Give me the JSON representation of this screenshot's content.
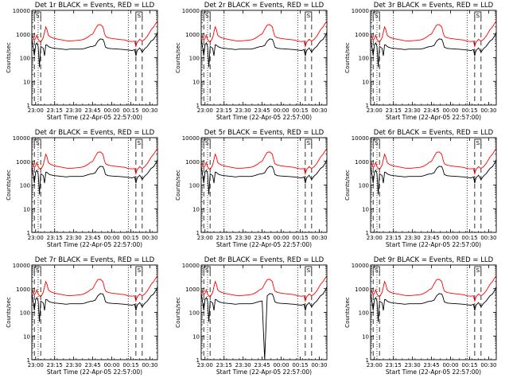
{
  "colors": {
    "events": "#000000",
    "lld": "#ff0000",
    "axis": "#000000",
    "background": "#ffffff"
  },
  "chart_data": [
    {
      "type": "line",
      "title": "Det 1r BLACK = Events, RED = LLD",
      "panel": "1r",
      "ylabel": "Counts/sec",
      "xlabel": "Start Time (22-Apr-05 22:57:00)",
      "xscale": "time",
      "yscale": "log",
      "xlim": [
        "22:57:00",
        "00:36:00"
      ],
      "ylim": [
        1,
        10000
      ],
      "x_ticks": [
        "23:00",
        "23:15",
        "23:30",
        "23:45",
        "00:00",
        "00:15",
        "00:30"
      ],
      "y_ticks": [
        "1",
        "10",
        "100",
        "1000",
        "10000"
      ],
      "dotted_lines": [
        "23:02",
        "23:15",
        "00:13"
      ],
      "dashed_lines": [
        "22:59",
        "23:04",
        "00:19",
        "00:24"
      ],
      "bracket_labels": [
        "S",
        "S"
      ]
    },
    {
      "type": "line",
      "title": "Det 2r BLACK = Events, RED = LLD",
      "panel": "2r",
      "ylabel": "Counts/sec",
      "xlabel": "Start Time (22-Apr-05 22:57:00)",
      "xscale": "time",
      "yscale": "log",
      "xlim": [
        "22:57:00",
        "00:36:00"
      ],
      "ylim": [
        1,
        10000
      ],
      "x_ticks": [
        "23:00",
        "23:15",
        "23:30",
        "23:45",
        "00:00",
        "00:15",
        "00:30"
      ],
      "y_ticks": [
        "1",
        "10",
        "100",
        "1000",
        "10000"
      ],
      "dotted_lines": [
        "23:02",
        "23:15",
        "00:13"
      ],
      "dashed_lines": [
        "22:59",
        "23:04",
        "00:19",
        "00:24"
      ],
      "bracket_labels": [
        "S",
        "S"
      ]
    },
    {
      "type": "line",
      "title": "Det 3r BLACK = Events, RED = LLD",
      "panel": "3r",
      "ylabel": "Counts/sec",
      "xlabel": "Start Time (22-Apr-05 22:57:00)",
      "xscale": "time",
      "yscale": "log",
      "xlim": [
        "22:57:00",
        "00:36:00"
      ],
      "ylim": [
        1,
        10000
      ],
      "x_ticks": [
        "23:00",
        "23:15",
        "23:30",
        "23:45",
        "00:00",
        "00:15",
        "00:30"
      ],
      "y_ticks": [
        "1",
        "10",
        "100",
        "1000",
        "10000"
      ],
      "dotted_lines": [
        "23:02",
        "23:15",
        "00:13"
      ],
      "dashed_lines": [
        "22:59",
        "23:04",
        "00:19",
        "00:24"
      ],
      "bracket_labels": [
        "S",
        "S"
      ]
    },
    {
      "type": "line",
      "title": "Det 4r BLACK = Events, RED = LLD",
      "panel": "4r",
      "ylabel": "Counts/sec",
      "xlabel": "Start Time (22-Apr-05 22:57:00)",
      "xscale": "time",
      "yscale": "log",
      "xlim": [
        "22:57:00",
        "00:36:00"
      ],
      "ylim": [
        1,
        10000
      ],
      "x_ticks": [
        "23:00",
        "23:15",
        "23:30",
        "23:45",
        "00:00",
        "00:15",
        "00:30"
      ],
      "y_ticks": [
        "1",
        "10",
        "100",
        "1000",
        "10000"
      ],
      "dotted_lines": [
        "23:02",
        "23:15",
        "00:13"
      ],
      "dashed_lines": [
        "22:59",
        "23:04",
        "00:19",
        "00:24"
      ],
      "bracket_labels": [
        "S",
        "S"
      ]
    },
    {
      "type": "line",
      "title": "Det 5r BLACK = Events, RED = LLD",
      "panel": "5r",
      "ylabel": "Counts/sec",
      "xlabel": "Start Time (22-Apr-05 22:57:00)",
      "xscale": "time",
      "yscale": "log",
      "xlim": [
        "22:57:00",
        "00:36:00"
      ],
      "ylim": [
        1,
        10000
      ],
      "x_ticks": [
        "23:00",
        "23:15",
        "23:30",
        "23:45",
        "00:00",
        "00:15",
        "00:30"
      ],
      "y_ticks": [
        "1",
        "10",
        "100",
        "1000",
        "10000"
      ],
      "dotted_lines": [
        "23:02",
        "23:15",
        "00:13"
      ],
      "dashed_lines": [
        "22:59",
        "23:04",
        "00:19",
        "00:24"
      ],
      "bracket_labels": [
        "S",
        "S"
      ]
    },
    {
      "type": "line",
      "title": "Det 6r BLACK = Events, RED = LLD",
      "panel": "6r",
      "ylabel": "Counts/sec",
      "xlabel": "Start Time (22-Apr-05 22:57:00)",
      "xscale": "time",
      "yscale": "log",
      "xlim": [
        "22:57:00",
        "00:36:00"
      ],
      "ylim": [
        1,
        10000
      ],
      "x_ticks": [
        "23:00",
        "23:15",
        "23:30",
        "23:45",
        "00:00",
        "00:15",
        "00:30"
      ],
      "y_ticks": [
        "1",
        "10",
        "100",
        "1000",
        "10000"
      ],
      "dotted_lines": [
        "23:02",
        "23:15",
        "00:13"
      ],
      "dashed_lines": [
        "22:59",
        "23:04",
        "00:19",
        "00:24"
      ],
      "bracket_labels": [
        "S",
        "S"
      ]
    },
    {
      "type": "line",
      "title": "Det 7r BLACK = Events, RED = LLD",
      "panel": "7r",
      "ylabel": "Counts/sec",
      "xlabel": "Start Time (22-Apr-05 22:57:00)",
      "xscale": "time",
      "yscale": "log",
      "xlim": [
        "22:57:00",
        "00:36:00"
      ],
      "ylim": [
        1,
        10000
      ],
      "x_ticks": [
        "23:00",
        "23:15",
        "23:30",
        "23:45",
        "00:00",
        "00:15",
        "00:30"
      ],
      "y_ticks": [
        "1",
        "10",
        "100",
        "1000",
        "10000"
      ],
      "dotted_lines": [
        "23:02",
        "23:15",
        "00:13"
      ],
      "dashed_lines": [
        "22:59",
        "23:04",
        "00:19",
        "00:24"
      ],
      "bracket_labels": [
        "S",
        "S"
      ]
    },
    {
      "type": "line",
      "title": "Det 8r BLACK = Events, RED = LLD",
      "panel": "8r",
      "ylabel": "Counts/sec",
      "xlabel": "Start Time (22-Apr-05 22:57:00)",
      "xscale": "time",
      "yscale": "log",
      "xlim": [
        "22:57:00",
        "00:36:00"
      ],
      "ylim": [
        1,
        10000
      ],
      "x_ticks": [
        "23:00",
        "23:15",
        "23:30",
        "23:45",
        "00:00",
        "00:15",
        "00:30"
      ],
      "y_ticks": [
        "1",
        "10",
        "100",
        "1000",
        "10000"
      ],
      "dotted_lines": [
        "23:02",
        "23:15",
        "00:13"
      ],
      "dashed_lines": [
        "22:59",
        "23:04",
        "00:19",
        "00:24"
      ],
      "bracket_labels": [
        "S",
        "S"
      ]
    },
    {
      "type": "line",
      "title": "Det 9r BLACK = Events, RED = LLD",
      "panel": "9r",
      "ylabel": "Counts/sec",
      "xlabel": "Start Time (22-Apr-05 22:57:00)",
      "xscale": "time",
      "yscale": "log",
      "xlim": [
        "22:57:00",
        "00:36:00"
      ],
      "ylim": [
        1,
        10000
      ],
      "x_ticks": [
        "23:00",
        "23:15",
        "23:30",
        "23:45",
        "00:00",
        "00:15",
        "00:30"
      ],
      "y_ticks": [
        "1",
        "10",
        "100",
        "1000",
        "10000"
      ],
      "dotted_lines": [
        "23:02",
        "23:15",
        "00:13"
      ],
      "dashed_lines": [
        "22:59",
        "23:04",
        "00:19",
        "00:24"
      ],
      "bracket_labels": [
        "S",
        "S"
      ]
    }
  ],
  "series_shape": {
    "events": [
      [
        "22:57",
        600
      ],
      [
        "22:58",
        300
      ],
      [
        "22:59",
        120
      ],
      [
        "23:00",
        350
      ],
      [
        "23:01",
        420
      ],
      [
        "23:02",
        300
      ],
      [
        "23:03",
        40
      ],
      [
        "23:04",
        300
      ],
      [
        "23:06",
        250
      ],
      [
        "23:07",
        120
      ],
      [
        "23:08",
        350
      ],
      [
        "23:09",
        340
      ],
      [
        "23:10",
        300
      ],
      [
        "23:11",
        280
      ],
      [
        "23:13",
        260
      ],
      [
        "23:15",
        250
      ],
      [
        "23:18",
        240
      ],
      [
        "23:21",
        230
      ],
      [
        "23:24",
        220
      ],
      [
        "23:27",
        230
      ],
      [
        "23:30",
        230
      ],
      [
        "23:33",
        230
      ],
      [
        "23:36",
        230
      ],
      [
        "23:38",
        240
      ],
      [
        "23:40",
        260
      ],
      [
        "23:42",
        280
      ],
      [
        "23:43",
        290
      ],
      [
        "23:45",
        300
      ],
      [
        "23:47",
        330
      ],
      [
        "23:49",
        500
      ],
      [
        "23:51",
        620
      ],
      [
        "23:53",
        600
      ],
      [
        "23:54",
        450
      ],
      [
        "23:55",
        280
      ],
      [
        "23:57",
        250
      ],
      [
        "00:00",
        240
      ],
      [
        "00:05",
        230
      ],
      [
        "00:10",
        220
      ],
      [
        "00:13",
        210
      ],
      [
        "00:16",
        200
      ],
      [
        "00:18",
        220
      ],
      [
        "00:19",
        120
      ],
      [
        "00:20",
        200
      ],
      [
        "00:22",
        260
      ],
      [
        "00:24",
        170
      ],
      [
        "00:26",
        240
      ],
      [
        "00:28",
        300
      ],
      [
        "00:31",
        500
      ],
      [
        "00:33",
        600
      ],
      [
        "00:35",
        900
      ],
      [
        "00:36",
        1200
      ]
    ],
    "lld": [
      [
        "22:57",
        700
      ],
      [
        "22:58",
        800
      ],
      [
        "22:59",
        550
      ],
      [
        "23:00",
        650
      ],
      [
        "23:01",
        900
      ],
      [
        "23:02",
        600
      ],
      [
        "23:03",
        500
      ],
      [
        "23:04",
        450
      ],
      [
        "23:06",
        700
      ],
      [
        "23:07",
        1200
      ],
      [
        "23:08",
        2000
      ],
      [
        "23:09",
        1500
      ],
      [
        "23:10",
        900
      ],
      [
        "23:11",
        800
      ],
      [
        "23:13",
        700
      ],
      [
        "23:15",
        650
      ],
      [
        "23:18",
        600
      ],
      [
        "23:21",
        560
      ],
      [
        "23:24",
        520
      ],
      [
        "23:27",
        500
      ],
      [
        "23:30",
        520
      ],
      [
        "23:33",
        540
      ],
      [
        "23:36",
        560
      ],
      [
        "23:38",
        600
      ],
      [
        "23:40",
        680
      ],
      [
        "23:42",
        800
      ],
      [
        "23:43",
        900
      ],
      [
        "23:45",
        1000
      ],
      [
        "23:47",
        1600
      ],
      [
        "23:49",
        2400
      ],
      [
        "23:51",
        2500
      ],
      [
        "23:53",
        2000
      ],
      [
        "23:54",
        1200
      ],
      [
        "23:55",
        800
      ],
      [
        "23:57",
        700
      ],
      [
        "00:00",
        650
      ],
      [
        "00:05",
        600
      ],
      [
        "00:10",
        560
      ],
      [
        "00:13",
        500
      ],
      [
        "00:16",
        480
      ],
      [
        "00:18",
        500
      ],
      [
        "00:19",
        300
      ],
      [
        "00:20",
        450
      ],
      [
        "00:22",
        600
      ],
      [
        "00:24",
        500
      ],
      [
        "00:26",
        600
      ],
      [
        "00:28",
        800
      ],
      [
        "00:31",
        1500
      ],
      [
        "00:33",
        2000
      ],
      [
        "00:35",
        3000
      ],
      [
        "00:36",
        3500
      ]
    ]
  }
}
